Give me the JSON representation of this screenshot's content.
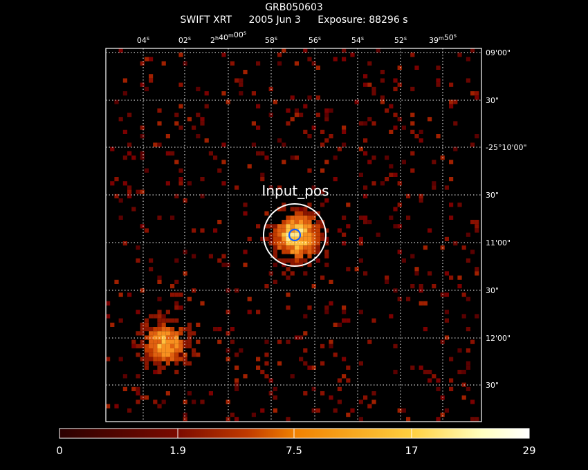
{
  "header": {
    "target": "GRB050603",
    "instrument": "SWIFT XRT",
    "date": "2005 Jun  3",
    "exposure": "Exposure: 88296 s"
  },
  "axes": {
    "ra_ticks": [
      "04s",
      "02s",
      "2h40m00s",
      "58s",
      "56s",
      "54s",
      "52s",
      "39m50s"
    ],
    "dec_ticks": [
      "09'00\"",
      "30\"",
      "-25°10'00\"",
      "30\"",
      "11'00\"",
      "30\"",
      "12'00\"",
      "30\""
    ]
  },
  "annotation": {
    "label": "Input_pos"
  },
  "colorbar": {
    "ticks": [
      "0",
      "1.9",
      "7.5",
      "17",
      "29"
    ],
    "colors": [
      "#2a0000",
      "#7a0a00",
      "#c03a00",
      "#f08000",
      "#ffd040",
      "#ffffc0",
      "#ffffff"
    ]
  },
  "sources": [
    {
      "name": "target",
      "fx": 0.502,
      "fy": 0.497,
      "strength": 1.0
    },
    {
      "name": "secondary",
      "fx": 0.152,
      "fy": 0.785,
      "strength": 0.75
    }
  ]
}
